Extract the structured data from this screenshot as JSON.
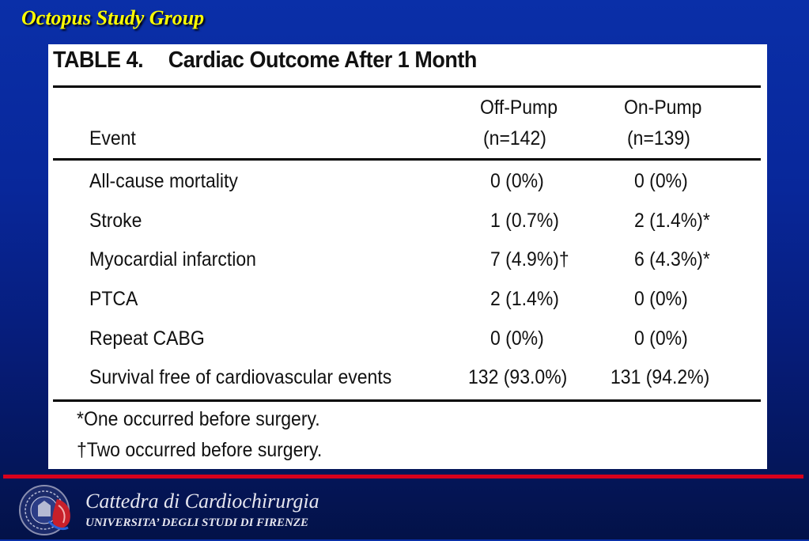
{
  "slide": {
    "title": "Octopus Study Group"
  },
  "table": {
    "caption_number": "TABLE 4.",
    "caption_text": "Cardiac Outcome After 1 Month",
    "columns": {
      "event": "Event",
      "off_pump_name": "Off-Pump",
      "off_pump_n": "(n=142)",
      "on_pump_name": "On-Pump",
      "on_pump_n": "(n=139)"
    },
    "rows": [
      {
        "event": "All-cause mortality",
        "off_pump": "0 (0%)",
        "on_pump": "0 (0%)"
      },
      {
        "event": "Stroke",
        "off_pump": "1 (0.7%)",
        "on_pump": "2 (1.4%)*"
      },
      {
        "event": "Myocardial infarction",
        "off_pump": "7 (4.9%)†",
        "on_pump": "6 (4.3%)*"
      },
      {
        "event": "PTCA",
        "off_pump": "2 (1.4%)",
        "on_pump": "0 (0%)"
      },
      {
        "event": "Repeat CABG",
        "off_pump": "0 (0%)",
        "on_pump": "0 (0%)"
      },
      {
        "event": "Survival free of cardiovascular events",
        "off_pump": "132 (93.0%)",
        "on_pump": "131 (94.2%)"
      }
    ],
    "footnotes": [
      "*One occurred before surgery.",
      "†Two occurred before surgery."
    ]
  },
  "footer": {
    "department": "Cattedra di Cardiochirurgia",
    "university": "UNIVERSITA’ DEGLI STUDI DI FIRENZE",
    "logo_icon": "university-seal-icon"
  },
  "colors": {
    "background_top": "#0a2fa8",
    "background_bottom": "#031248",
    "title": "#ffff00",
    "divider": "#d8001c"
  }
}
